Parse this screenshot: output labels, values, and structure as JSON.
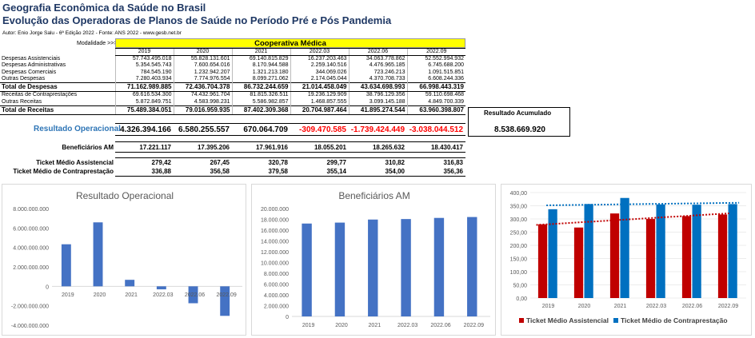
{
  "header": {
    "title1": "Geografia Econômica da Saúde no Brasil",
    "title2": "Evolução das Operadoras de Planos de Saúde no Período Pré e Pós Pandemia",
    "author": "Autor: Enio Jorge Salu - 6ª Edição 2022 - Fonte: ANS 2022 - www.gesb.net.br",
    "modalidade_label": "Modalidade >>>",
    "modalidade": "Cooperativa Médica"
  },
  "table": {
    "years": [
      "2019",
      "2020",
      "2021",
      "2022.03",
      "2022.06",
      "2022.09"
    ],
    "rows": [
      {
        "label": "Despesas Assistenciais",
        "values": [
          "57.743.495.018",
          "55.828.131.601",
          "69.140.815.829",
          "16.237.203.463",
          "34.063.778.862",
          "52.552.994.932"
        ]
      },
      {
        "label": "Despesas Administrativas",
        "values": [
          "5.354.545.743",
          "7.600.654.016",
          "8.170.944.588",
          "2.259.140.516",
          "4.476.965.185",
          "6.745.688.200"
        ]
      },
      {
        "label": "Despesas Comerciais",
        "values": [
          "784.545.190",
          "1.232.942.207",
          "1.321.213.180",
          "344.069.026",
          "723.246.213",
          "1.091.515.851"
        ]
      },
      {
        "label": "Outras Despesas",
        "values": [
          "7.280.403.934",
          "7.774.976.554",
          "8.099.271.062",
          "2.174.045.044",
          "4.370.708.733",
          "6.608.244.336"
        ]
      }
    ],
    "total_despesas": {
      "label": "Total de Despesas",
      "values": [
        "71.162.989.885",
        "72.436.704.378",
        "86.732.244.659",
        "21.014.458.049",
        "43.634.698.993",
        "66.998.443.319"
      ]
    },
    "rows2": [
      {
        "label": "Receitas de Contraprestações",
        "values": [
          "69.616.534.300",
          "74.432.961.704",
          "81.815.326.511",
          "19.236.129.909",
          "38.796.129.356",
          "59.110.698.468"
        ]
      },
      {
        "label": "Outras Receitas",
        "values": [
          "5.872.849.751",
          "4.583.998.231",
          "5.586.982.857",
          "1.468.857.555",
          "3.099.145.188",
          "4.849.700.339"
        ]
      }
    ],
    "total_receitas": {
      "label": "Total de Receitas",
      "values": [
        "75.489.384.051",
        "79.016.959.935",
        "87.402.309.368",
        "20.704.987.464",
        "41.895.274.544",
        "63.960.398.807"
      ]
    },
    "resultado_acumulado_label": "Resultado Acumulado",
    "resultado_operacional": {
      "label": "Resultado Operacional",
      "values": [
        "4.326.394.166",
        "6.580.255.557",
        "670.064.709",
        "-309.470.585",
        "-1.739.424.449",
        "-3.038.044.512"
      ],
      "accum": "8.538.669.920"
    },
    "beneficiarios": {
      "label": "Beneficiários AM",
      "values": [
        "17.221.117",
        "17.395.206",
        "17.961.916",
        "18.055.201",
        "18.265.632",
        "18.430.417"
      ]
    },
    "ticket_assist": {
      "label": "Ticket Médio Assistencial",
      "values": [
        "279,42",
        "267,45",
        "320,78",
        "299,77",
        "310,82",
        "316,83"
      ]
    },
    "ticket_contra": {
      "label": "Ticket Médio de Contraprestação",
      "values": [
        "336,88",
        "356,58",
        "379,58",
        "355,14",
        "354,00",
        "356,36"
      ]
    }
  },
  "chart_data": [
    {
      "type": "bar",
      "title": "Resultado Operacional",
      "categories": [
        "2019",
        "2020",
        "2021",
        "2022.03",
        "2022.06",
        "2022.09"
      ],
      "values": [
        4326394166,
        6580255557,
        670064709,
        -309470585,
        -1739424449,
        -3038044512
      ],
      "ylim": [
        -4000000000,
        8000000000
      ],
      "yticks": [
        "8.000.000.000",
        "6.000.000.000",
        "4.000.000.000",
        "2.000.000.000",
        "0",
        "-2.000.000.000",
        "-4.000.000.000"
      ],
      "color": "#4472c4"
    },
    {
      "type": "bar",
      "title": "Beneficiários AM",
      "categories": [
        "2019",
        "2020",
        "2021",
        "2022.03",
        "2022.06",
        "2022.09"
      ],
      "values": [
        17221117,
        17395206,
        17961916,
        18055201,
        18265632,
        18430417
      ],
      "ylim": [
        0,
        20000000
      ],
      "yticks": [
        "20.000.000",
        "18.000.000",
        "16.000.000",
        "14.000.000",
        "12.000.000",
        "10.000.000",
        "8.000.000",
        "6.000.000",
        "4.000.000",
        "2.000.000",
        "0"
      ],
      "color": "#4472c4"
    },
    {
      "type": "bar",
      "title": "",
      "categories": [
        "2019",
        "2020",
        "2021",
        "2022.03",
        "2022.06",
        "2022.09"
      ],
      "series": [
        {
          "name": "Ticket Médio Assistencial",
          "values": [
            279.42,
            267.45,
            320.78,
            299.77,
            310.82,
            316.83
          ],
          "color": "#c00000"
        },
        {
          "name": "Ticket Médio de Contraprestação",
          "values": [
            336.88,
            356.58,
            379.58,
            355.14,
            354.0,
            356.36
          ],
          "color": "#0070c0"
        }
      ],
      "ylim": [
        0,
        400
      ],
      "yticks": [
        "400,00",
        "350,00",
        "300,00",
        "250,00",
        "200,00",
        "150,00",
        "100,00",
        "50,00",
        "0,00"
      ],
      "trendlines": true,
      "legend": "bottom"
    }
  ]
}
